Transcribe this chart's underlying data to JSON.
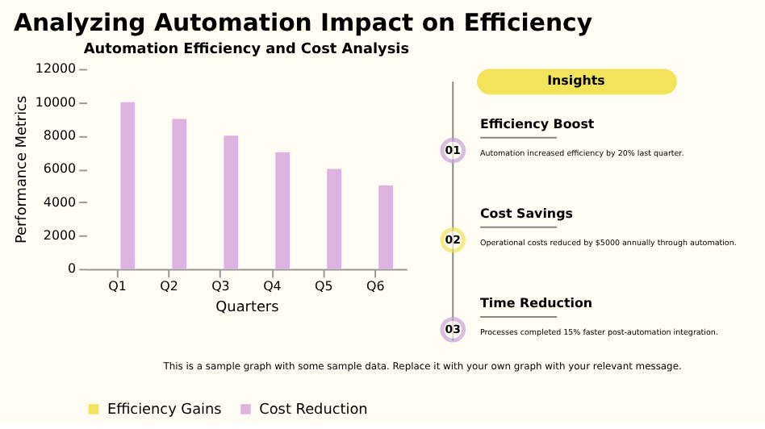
{
  "chart_data": [
    {
      "type": "bar",
      "title": "Analyzing Automation Impact on Efficiency",
      "subtitle": "Automation Efficiency and Cost Analysis",
      "xlabel": "Quarters",
      "ylabel": "Performance Metrics",
      "categories": [
        "Q1",
        "Q2",
        "Q3",
        "Q4",
        "Q5",
        "Q6"
      ],
      "series": [
        {
          "name": "Efficiency Gains",
          "color": "#f2e35a",
          "values": [
            0,
            0,
            0,
            0,
            0,
            0
          ]
        },
        {
          "name": "Cost Reduction",
          "color": "#dfb3e0",
          "values": [
            10000,
            9000,
            8000,
            7000,
            6000,
            5000
          ]
        }
      ],
      "ylim": [
        0,
        12000
      ],
      "yticks": [
        0,
        2000,
        4000,
        6000,
        8000,
        10000,
        12000
      ],
      "grid": false,
      "legend": "bottom",
      "annotations": [
        "This is a sample graph with some sample data. Replace it with your own graph with your relevant message."
      ]
    },
    {
      "type": "other",
      "title": "Insights",
      "annotations": [
        "01",
        "Efficiency Boost",
        "Automation increased efficiency by 20% last quarter.",
        "02",
        "Cost Savings",
        "Operational costs reduced by $5000 annually through automation.",
        "03",
        "Time Reduction",
        "Processes completed 15% faster post-automation integration."
      ]
    }
  ]
}
